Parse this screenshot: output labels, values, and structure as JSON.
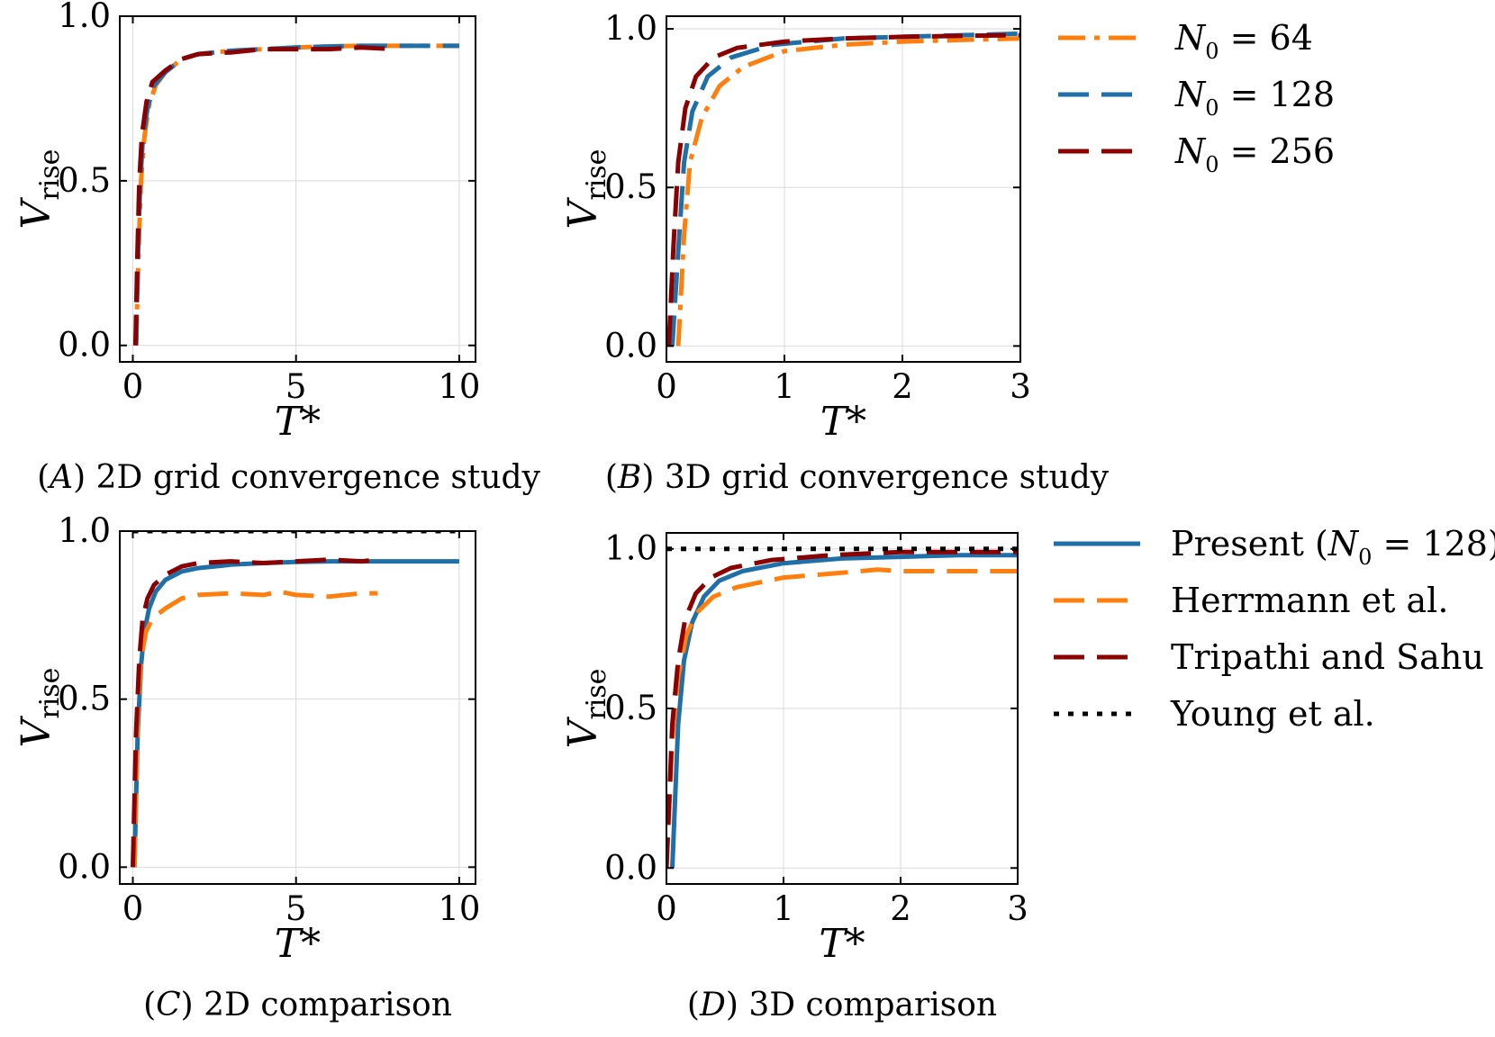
{
  "colors": {
    "orange": "#ff7f0e",
    "blue": "#1f6fa8",
    "darkred": "#8b0000",
    "black": "#000000"
  },
  "legend_top": {
    "items": [
      {
        "name": "N0_64",
        "label": "N",
        "sub": "0",
        "rest": " = 64",
        "color": "#ff7f0e",
        "style": "dashdot"
      },
      {
        "name": "N0_128",
        "label": "N",
        "sub": "0",
        "rest": " = 128",
        "color": "#1f6fa8",
        "style": "dashed"
      },
      {
        "name": "N0_256",
        "label": "N",
        "sub": "0",
        "rest": " = 256",
        "color": "#8b0000",
        "style": "dashed"
      }
    ]
  },
  "legend_bottom": {
    "items": [
      {
        "name": "present",
        "label": "Present (",
        "sub": "0",
        "rest": " = 128)",
        "italicN": true,
        "color": "#1f6fa8",
        "style": "solid"
      },
      {
        "name": "herrmann",
        "label": "Herrmann et al.",
        "color": "#ff7f0e",
        "style": "dashed"
      },
      {
        "name": "tripathi",
        "label": "Tripathi and Sahu",
        "color": "#8b0000",
        "style": "dashed"
      },
      {
        "name": "young",
        "label": "Young et al.",
        "color": "#000000",
        "style": "dotted"
      }
    ]
  },
  "chart_data": [
    {
      "id": "A",
      "type": "line",
      "caption_letter": "A",
      "caption": "2D grid convergence study",
      "xlabel": "T*",
      "ylabel": "V_rise",
      "xlim": [
        -0.4,
        10.5
      ],
      "ylim": [
        -0.05,
        1.0
      ],
      "xticks": [
        0,
        5,
        10
      ],
      "xticklabels": [
        "0",
        "5",
        "10"
      ],
      "yticks": [
        0.0,
        0.5,
        1.0
      ],
      "yticklabels": [
        "0.0",
        "0.5",
        "1.0"
      ],
      "series": [
        {
          "name": "N0 = 64",
          "color": "#ff7f0e",
          "style": "dashdot",
          "x": [
            0.1,
            0.18,
            0.25,
            0.35,
            0.5,
            0.7,
            1.0,
            1.5,
            2.0,
            3.0,
            4.0,
            5.0,
            6.0,
            7.0,
            8.0,
            9.0,
            10.0
          ],
          "y": [
            0.0,
            0.3,
            0.5,
            0.63,
            0.73,
            0.79,
            0.83,
            0.87,
            0.885,
            0.895,
            0.9,
            0.905,
            0.908,
            0.91,
            0.91,
            0.91,
            0.91
          ]
        },
        {
          "name": "N0 = 128",
          "color": "#1f6fa8",
          "style": "dashed",
          "x": [
            0.1,
            0.16,
            0.22,
            0.3,
            0.45,
            0.65,
            1.0,
            1.5,
            2.0,
            3.0,
            4.0,
            5.0,
            6.0,
            7.0,
            8.0,
            9.0,
            10.0
          ],
          "y": [
            0.0,
            0.28,
            0.48,
            0.62,
            0.72,
            0.79,
            0.83,
            0.87,
            0.885,
            0.895,
            0.9,
            0.905,
            0.908,
            0.91,
            0.91,
            0.91,
            0.91
          ]
        },
        {
          "name": "N0 = 256",
          "color": "#8b0000",
          "style": "dashed",
          "x": [
            0.08,
            0.14,
            0.2,
            0.28,
            0.42,
            0.6,
            1.0,
            1.5,
            2.0,
            3.0,
            4.0,
            5.0,
            6.0,
            7.0,
            8.0
          ],
          "y": [
            0.0,
            0.28,
            0.5,
            0.64,
            0.74,
            0.8,
            0.835,
            0.87,
            0.885,
            0.89,
            0.9,
            0.9,
            0.9,
            0.905,
            0.9
          ]
        }
      ]
    },
    {
      "id": "B",
      "type": "line",
      "caption_letter": "B",
      "caption": "3D grid convergence study",
      "xlabel": "T*",
      "ylabel": "V_rise",
      "xlim": [
        0.0,
        3.0
      ],
      "ylim": [
        -0.05,
        1.04
      ],
      "xticks": [
        0,
        1,
        2,
        3
      ],
      "xticklabels": [
        "0",
        "1",
        "2",
        "3"
      ],
      "yticks": [
        0.0,
        0.5,
        1.0
      ],
      "yticklabels": [
        "0.0",
        "0.5",
        "1.0"
      ],
      "series": [
        {
          "name": "N0 = 64",
          "color": "#ff7f0e",
          "style": "dashdot",
          "x": [
            0.1,
            0.15,
            0.2,
            0.3,
            0.45,
            0.65,
            1.0,
            1.5,
            2.0,
            2.5,
            3.0
          ],
          "y": [
            0.0,
            0.35,
            0.58,
            0.72,
            0.82,
            0.88,
            0.93,
            0.95,
            0.96,
            0.965,
            0.97
          ]
        },
        {
          "name": "N0 = 128",
          "color": "#1f6fa8",
          "style": "dashed",
          "x": [
            0.05,
            0.1,
            0.15,
            0.22,
            0.35,
            0.55,
            0.9,
            1.5,
            2.0,
            2.5,
            3.0
          ],
          "y": [
            0.0,
            0.3,
            0.58,
            0.74,
            0.85,
            0.91,
            0.95,
            0.97,
            0.975,
            0.98,
            0.985
          ]
        },
        {
          "name": "N0 = 256",
          "color": "#8b0000",
          "style": "dashed",
          "x": [
            0.02,
            0.06,
            0.1,
            0.16,
            0.25,
            0.4,
            0.6,
            1.0,
            1.5,
            2.0,
            2.5,
            3.0
          ],
          "y": [
            0.0,
            0.32,
            0.58,
            0.75,
            0.85,
            0.91,
            0.94,
            0.96,
            0.97,
            0.975,
            0.978,
            0.98
          ]
        }
      ]
    },
    {
      "id": "C",
      "type": "line",
      "caption_letter": "C",
      "caption": "2D comparison",
      "xlabel": "T*",
      "ylabel": "V_rise",
      "xlim": [
        -0.4,
        10.5
      ],
      "ylim": [
        -0.05,
        1.0
      ],
      "xticks": [
        0,
        5,
        10
      ],
      "xticklabels": [
        "0",
        "5",
        "10"
      ],
      "yticks": [
        0.0,
        0.5,
        1.0
      ],
      "yticklabels": [
        "0.0",
        "0.5",
        "1.0"
      ],
      "series": [
        {
          "name": "Present (N0 = 128)",
          "color": "#1f6fa8",
          "style": "solid",
          "x": [
            0.05,
            0.15,
            0.25,
            0.35,
            0.5,
            0.7,
            1.0,
            1.5,
            2.0,
            3.0,
            4.0,
            5.0,
            6.0,
            7.0,
            8.0,
            9.0,
            10.0
          ],
          "y": [
            0.0,
            0.4,
            0.6,
            0.7,
            0.77,
            0.82,
            0.855,
            0.88,
            0.89,
            0.9,
            0.905,
            0.908,
            0.91,
            0.91,
            0.91,
            0.91,
            0.91
          ]
        },
        {
          "name": "Herrmann et al.",
          "color": "#ff7f0e",
          "style": "dashed",
          "x": [
            0.05,
            0.15,
            0.25,
            0.4,
            0.6,
            1.0,
            1.5,
            2.0,
            3.0,
            4.0,
            4.5,
            5.0,
            6.0,
            7.0,
            7.5
          ],
          "y": [
            0.0,
            0.45,
            0.62,
            0.7,
            0.74,
            0.77,
            0.8,
            0.81,
            0.815,
            0.81,
            0.82,
            0.81,
            0.805,
            0.815,
            0.815
          ]
        },
        {
          "name": "Tripathi and Sahu",
          "color": "#8b0000",
          "style": "dashed",
          "x": [
            0.0,
            0.1,
            0.2,
            0.3,
            0.45,
            0.65,
            1.0,
            1.5,
            2.0,
            3.0,
            4.0,
            5.0,
            6.0,
            7.0,
            7.5
          ],
          "y": [
            0.0,
            0.4,
            0.62,
            0.74,
            0.8,
            0.84,
            0.87,
            0.895,
            0.905,
            0.91,
            0.905,
            0.91,
            0.915,
            0.91,
            0.915
          ]
        },
        {
          "name": "Young et al.",
          "color": "#000000",
          "style": "dotted",
          "x": [
            0.0,
            10.0
          ],
          "y": [
            1.0,
            1.0
          ]
        }
      ]
    },
    {
      "id": "D",
      "type": "line",
      "caption_letter": "D",
      "caption": "3D comparison",
      "xlabel": "T*",
      "ylabel": "V_rise",
      "xlim": [
        0.0,
        3.0
      ],
      "ylim": [
        -0.05,
        1.05
      ],
      "xticks": [
        0,
        1,
        2,
        3
      ],
      "xticklabels": [
        "0",
        "1",
        "2",
        "3"
      ],
      "yticks": [
        0.0,
        0.5,
        1.0
      ],
      "yticklabels": [
        "0.0",
        "0.5",
        "1.0"
      ],
      "series": [
        {
          "name": "Present (N0 = 128)",
          "color": "#1f6fa8",
          "style": "solid",
          "x": [
            0.05,
            0.1,
            0.15,
            0.22,
            0.32,
            0.45,
            0.65,
            1.0,
            1.5,
            2.0,
            2.5,
            3.0
          ],
          "y": [
            0.0,
            0.45,
            0.65,
            0.77,
            0.85,
            0.9,
            0.93,
            0.955,
            0.97,
            0.975,
            0.98,
            0.98
          ]
        },
        {
          "name": "Herrmann et al.",
          "color": "#ff7f0e",
          "style": "dashed",
          "x": [
            0.0,
            0.05,
            0.1,
            0.17,
            0.26,
            0.4,
            0.6,
            1.0,
            1.5,
            1.8,
            2.0,
            2.5,
            3.0
          ],
          "y": [
            0.0,
            0.4,
            0.6,
            0.73,
            0.8,
            0.85,
            0.88,
            0.91,
            0.925,
            0.935,
            0.93,
            0.93,
            0.93
          ]
        },
        {
          "name": "Tripathi and Sahu",
          "color": "#8b0000",
          "style": "dashed",
          "x": [
            0.0,
            0.05,
            0.1,
            0.16,
            0.25,
            0.38,
            0.55,
            0.9,
            1.4,
            2.0,
            2.5,
            3.0
          ],
          "y": [
            0.0,
            0.45,
            0.65,
            0.78,
            0.86,
            0.91,
            0.94,
            0.965,
            0.98,
            0.99,
            0.99,
            0.99
          ]
        },
        {
          "name": "Young et al.",
          "color": "#000000",
          "style": "dotted",
          "x": [
            0.0,
            3.0
          ],
          "y": [
            1.0,
            1.0
          ]
        }
      ]
    }
  ]
}
